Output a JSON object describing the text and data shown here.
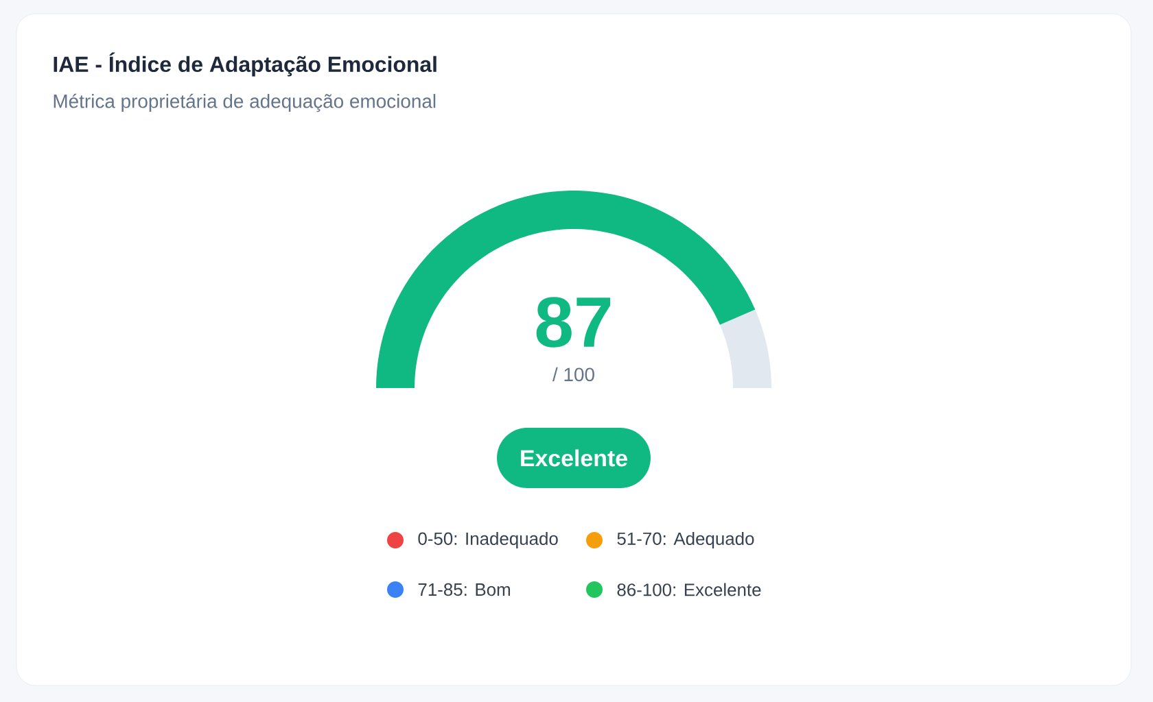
{
  "chart_data": {
    "type": "donut",
    "title": "IAE - Índice de Adaptação Emocional",
    "subtitle": "Métrica proprietária de adequação emocional",
    "categories": [
      null,
      null
    ],
    "values": [
      87,
      13
    ],
    "colors": [
      "#10b981",
      "#e2e8f0"
    ],
    "value_labels": [
      "87",
      null
    ],
    "annotations": [
      "/ 100",
      "Excelente",
      "0-50: Inadequado",
      "51-70: Adequado",
      "71-85: Bom",
      "86-100: Excelente"
    ]
  }
}
